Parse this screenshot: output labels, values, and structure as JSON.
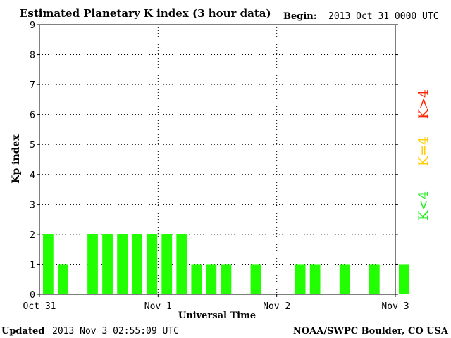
{
  "header": {
    "title": "Estimated Planetary K index (3 hour data)",
    "begin_label": "Begin:",
    "begin_value": "2013 Oct 31 0000 UTC"
  },
  "footer": {
    "updated_label": "Updated",
    "updated_value": "2013 Nov  3 02:55:09 UTC",
    "credit": "NOAA/SWPC Boulder, CO USA"
  },
  "legend": {
    "items": [
      {
        "label": "K>4",
        "color": "#ff2200"
      },
      {
        "label": "K=4",
        "color": "#ffcc00"
      },
      {
        "label": "K<4",
        "color": "#22ee22"
      }
    ]
  },
  "chart_data": {
    "type": "bar",
    "title": "Estimated Planetary K index (3 hour data)",
    "xlabel": "Universal Time",
    "ylabel": "Kp index",
    "ylim": [
      0,
      9
    ],
    "yticks": [
      0,
      1,
      2,
      3,
      4,
      5,
      6,
      7,
      8,
      9
    ],
    "xlim_days": [
      0,
      3
    ],
    "xticks": [
      {
        "day": 0,
        "label": "Oct 31"
      },
      {
        "day": 1,
        "label": "Nov 1"
      },
      {
        "day": 2,
        "label": "Nov 2"
      },
      {
        "day": 3,
        "label": "Nov 3"
      }
    ],
    "grid": "dotted",
    "bar_color": "#22ff00",
    "bins_per_day": 8,
    "values": [
      2,
      1,
      0,
      2,
      2,
      2,
      2,
      2,
      2,
      2,
      1,
      1,
      1,
      0,
      1,
      0,
      0,
      1,
      1,
      0,
      1,
      0,
      1,
      0,
      1
    ]
  }
}
